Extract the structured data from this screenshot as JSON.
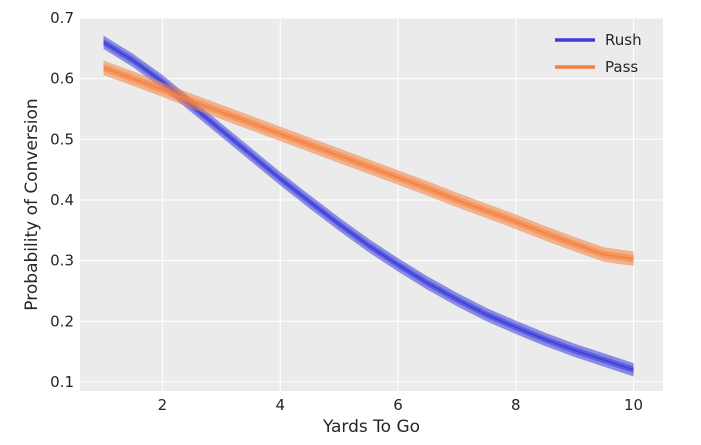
{
  "chart_data": {
    "type": "line",
    "title": "",
    "xlabel": "Yards To Go",
    "ylabel": "Probability of Conversion",
    "xlim": [
      0.6,
      10.5
    ],
    "ylim": [
      0.085,
      0.7
    ],
    "xticks": [
      2,
      4,
      6,
      8,
      10
    ],
    "xtick_labels": [
      "2",
      "4",
      "6",
      "8",
      "10"
    ],
    "yticks": [
      0.1,
      0.2,
      0.3,
      0.4,
      0.5,
      0.6,
      0.7
    ],
    "ytick_labels": [
      "0.1",
      "0.2",
      "0.3",
      "0.4",
      "0.5",
      "0.6",
      "0.7"
    ],
    "grid": true,
    "legend_position": "top-right",
    "x": [
      1,
      1.5,
      2,
      2.5,
      3,
      3.5,
      4,
      4.5,
      5,
      5.5,
      6,
      6.5,
      7,
      7.5,
      8,
      8.5,
      9,
      9.5,
      10
    ],
    "series": [
      {
        "name": "Rush",
        "color": "#3a3ddb",
        "values": [
          0.66,
          0.63,
          0.595,
          0.555,
          0.515,
          0.475,
          0.435,
          0.397,
          0.36,
          0.325,
          0.293,
          0.263,
          0.236,
          0.211,
          0.19,
          0.17,
          0.152,
          0.136,
          0.12
        ],
        "band_width": 0.022
      },
      {
        "name": "Pass",
        "color": "#f5813f",
        "values": [
          0.618,
          0.6,
          0.582,
          0.563,
          0.545,
          0.527,
          0.509,
          0.491,
          0.473,
          0.455,
          0.437,
          0.419,
          0.4,
          0.382,
          0.364,
          0.345,
          0.327,
          0.31,
          0.303
        ],
        "band_width": 0.024
      }
    ]
  }
}
